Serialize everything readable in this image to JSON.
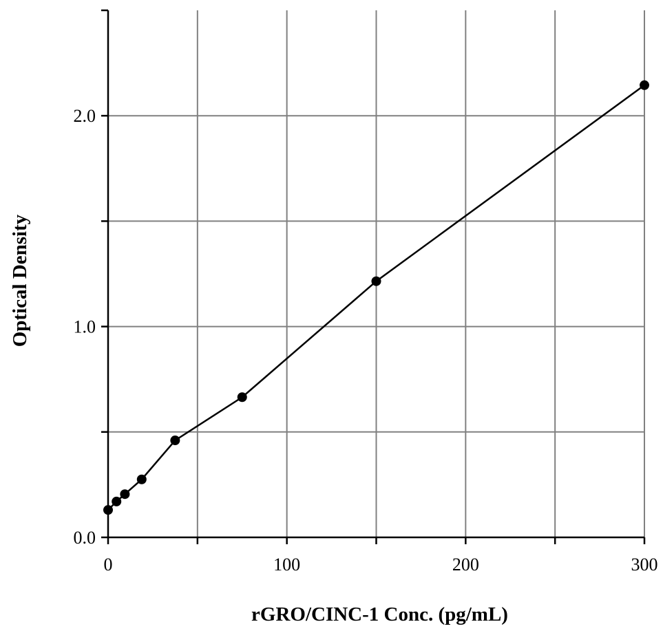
{
  "chart_data": {
    "type": "line",
    "title": "",
    "xlabel": "rGRO/CINC-1 Conc. (pg/mL)",
    "ylabel": "Optical Density",
    "xlim": [
      0,
      300
    ],
    "ylim": [
      0,
      2.5
    ],
    "x_ticks": [
      0,
      50,
      100,
      150,
      200,
      250,
      300
    ],
    "x_tick_labels": [
      "0",
      "",
      "100",
      "",
      "200",
      "",
      "300"
    ],
    "y_ticks": [
      0,
      0.5,
      1.0,
      1.5,
      2.0
    ],
    "y_tick_labels": [
      "0.0",
      "",
      "1.0",
      "",
      "2.0"
    ],
    "grid": true,
    "legend": "none",
    "series": [
      {
        "x": [
          0,
          4.7,
          9.4,
          18.8,
          37.5,
          75,
          150,
          300
        ],
        "y": [
          0.13,
          0.17,
          0.205,
          0.275,
          0.46,
          0.665,
          1.215,
          2.145
        ]
      }
    ],
    "colors": {
      "line": "#000000",
      "marker": "#000000",
      "grid": "#808080",
      "axis": "#000000"
    }
  }
}
